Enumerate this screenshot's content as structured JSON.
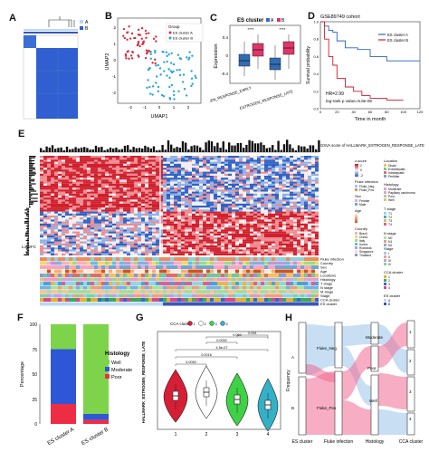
{
  "panel_labels": {
    "A": "A",
    "B": "B",
    "C": "C",
    "D": "D",
    "E": "E",
    "F": "F",
    "G": "G",
    "H": "H"
  },
  "panelA": {
    "legend": [
      "A",
      "B"
    ]
  },
  "panelB": {
    "xlabel": "UMAP1",
    "ylabel": "UMAP2",
    "legend_title": "Group",
    "legend": [
      "ES cluster A",
      "ES cluster B"
    ],
    "xticks": [
      "-2",
      "-1",
      "0",
      "1",
      "2"
    ],
    "yticks": [
      "-2",
      "-1",
      "0",
      "1",
      "2"
    ]
  },
  "panelC": {
    "title": "ES cluster",
    "legend": [
      "A",
      "B"
    ],
    "ylabel": "Expression",
    "xticks": [
      "ESTROGEN_RESPONSE_EARLY",
      "ESTROGEN_RESPONSE_LATE"
    ],
    "sig": [
      "****",
      "****"
    ],
    "yticks": [
      "-0.4",
      "0",
      "0.4"
    ]
  },
  "panelD": {
    "title": "GSE89749 cohort",
    "ylabel": "Survival probability",
    "xlabel": "Time in month",
    "legend": [
      "ES cluster A",
      "ES cluster B"
    ],
    "hr": "HR=2.99",
    "pval": "log-rank p value=5.8e-05",
    "xticks": [
      "0",
      "20",
      "40",
      "60",
      "80",
      "100",
      "120"
    ],
    "yticks": [
      "0.0",
      "0.2",
      "0.4",
      "0.6",
      "0.8",
      "1.0"
    ]
  },
  "panelE": {
    "gsva_label": "GSVA score of HALLMARK_ESTROGEN_RESPONSE_LATE",
    "log2fc": "Log2FC",
    "track_labels": [
      "Fluke infection",
      "Country",
      "Sex",
      "Age",
      "Locations",
      "Histology",
      "T stage",
      "N stage",
      "M stage",
      "Stage",
      "CCA cluster",
      "ES cluster"
    ],
    "legend": {
      "zscore_title": "z-score",
      "zscore_ticks": [
        "2",
        "1",
        "0",
        "-1",
        "-2"
      ],
      "location_title": "Location",
      "location": [
        "Distal",
        "Extrahepatic",
        "Intrahepatic",
        "Perihilar"
      ],
      "histology_title": "Histology",
      "histology": [
        "Moderate",
        "Papillary carcinoma",
        "Poor",
        "Well"
      ],
      "sex_title": "Sex",
      "sex": [
        "Female",
        "Male"
      ],
      "age_title": "Age",
      "fluke_title": "Fluke infection",
      "fluke": [
        "Fluke_Neg",
        "Fluke_Pos"
      ],
      "country_title": "Country",
      "country": [
        "Brazil",
        "China",
        "Italy",
        "Korea",
        "Romania",
        "Singapore",
        "Thailand"
      ],
      "tstage_title": "T stage",
      "nstage_title": "N stage",
      "mstage_title": "M stage",
      "stage_title": "Stage",
      "cca_title": "CCA cluster",
      "es_title": "ES cluster"
    }
  },
  "panelF": {
    "ylabel": "Percentage",
    "legend_title": "Histology",
    "legend": [
      "Well",
      "Moderate",
      "Poor"
    ],
    "xticks": [
      "ES cluster A",
      "ES cluster B"
    ],
    "yticks": [
      "0",
      "25",
      "50",
      "75",
      "100"
    ]
  },
  "panelG": {
    "legend_title": "CCA cluster",
    "legend": [
      "1",
      "2",
      "3",
      "4"
    ],
    "ylabel": "HALLMARK_ESTROGEN_RESPONSE_LATE",
    "pvals": [
      "0.0052",
      "0.0016",
      "4.5e-07",
      "0.0052",
      "0.060",
      "0.051"
    ],
    "xticks": [
      "1",
      "2",
      "3",
      "4"
    ]
  },
  "panelH": {
    "ylabel": "Frequency",
    "axis_labels": [
      "ES cluster",
      "Fluke infection",
      "Histology",
      "CCA cluster"
    ],
    "nodes": [
      "A",
      "B",
      "Fluke_Neg",
      "Fluke_Pos",
      "Moderate",
      "Poor",
      "Well",
      "1",
      "2",
      "3",
      "4"
    ]
  },
  "chart_data": [
    {
      "type": "heatmap",
      "title": "",
      "note": "consensus matrix, 2 clusters"
    },
    {
      "type": "scatter",
      "xlabel": "UMAP1",
      "ylabel": "UMAP2",
      "series": [
        {
          "name": "ES cluster A"
        },
        {
          "name": "ES cluster B"
        }
      ]
    },
    {
      "type": "box",
      "categories": [
        "ESTROGEN_RESPONSE_EARLY",
        "ESTROGEN_RESPONSE_LATE"
      ],
      "series": [
        {
          "name": "A",
          "median": [
            -0.05,
            -0.05
          ]
        },
        {
          "name": "B",
          "median": [
            0.15,
            0.15
          ]
        }
      ],
      "ylabel": "Expression"
    },
    {
      "type": "line",
      "title": "GSE89749 cohort",
      "xlabel": "Time in month",
      "ylabel": "Survival probability",
      "xlim": [
        0,
        120
      ],
      "ylim": [
        0,
        1
      ],
      "series": [
        {
          "name": "ES cluster A",
          "x": [
            0,
            5,
            10,
            15,
            20,
            30,
            45,
            60,
            80,
            100,
            120
          ],
          "y": [
            1,
            0.95,
            0.9,
            0.88,
            0.78,
            0.7,
            0.68,
            0.6,
            0.55,
            0.55,
            0.55
          ]
        },
        {
          "name": "ES cluster B",
          "x": [
            0,
            5,
            10,
            15,
            20,
            30,
            40,
            50,
            60,
            80,
            100
          ],
          "y": [
            1,
            0.8,
            0.6,
            0.5,
            0.35,
            0.25,
            0.2,
            0.15,
            0.12,
            0.1,
            0.1
          ]
        }
      ]
    },
    {
      "type": "heatmap",
      "title": "",
      "note": "gene expression heatmap with annotation tracks"
    },
    {
      "type": "bar",
      "categories": [
        "ES cluster A",
        "ES cluster B"
      ],
      "series": [
        {
          "name": "Poor",
          "values": [
            20,
            4
          ]
        },
        {
          "name": "Moderate",
          "values": [
            55,
            6
          ]
        },
        {
          "name": "Well",
          "values": [
            25,
            90
          ]
        }
      ],
      "ylim": [
        0,
        100
      ]
    },
    {
      "type": "violin",
      "categories": [
        "1",
        "2",
        "3",
        "4"
      ],
      "series": [
        {
          "name": "CCA cluster",
          "median": [
            0.48,
            0.52,
            0.46,
            0.42
          ]
        }
      ]
    },
    {
      "type": "alluvial",
      "axes": [
        "ES cluster",
        "Fluke infection",
        "Histology",
        "CCA cluster"
      ]
    }
  ]
}
